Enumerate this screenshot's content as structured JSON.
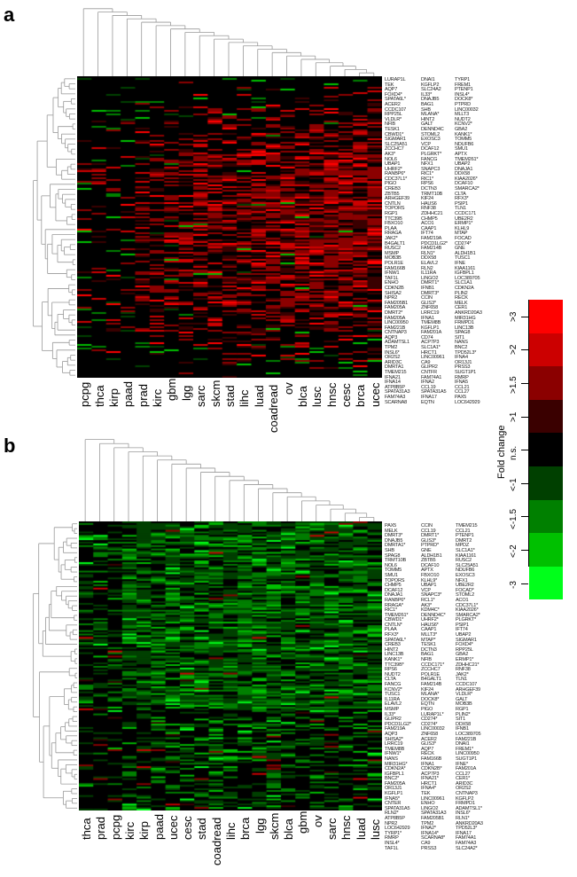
{
  "chart_data": [
    {
      "panel": "a",
      "type": "heatmap",
      "title": "",
      "xlabel": "",
      "ylabel": "",
      "dominant_direction": "up (red)",
      "columns": [
        "pcpg",
        "thca",
        "kirp",
        "paad",
        "prad",
        "kirc",
        "gbm",
        "lgg",
        "sarc",
        "skcm",
        "stad",
        "lihc",
        "luad",
        "coadread",
        "ov",
        "blca",
        "lusc",
        "hnsc",
        "cesc",
        "brca",
        "ucec"
      ],
      "row_dendrogram": true,
      "column_dendrogram": true,
      "gene_labels": [
        [
          "LURAP1L",
          "TEK",
          "AQP7",
          "FOXD4*",
          "SPATA6L*",
          "ACER2",
          "CCDC107",
          "RPP25L",
          "VLDLR*",
          "NFIB",
          "TESK1",
          "CBWD1*",
          "SIGMAR1",
          "SLC25A51",
          "ZCCHC7",
          "AK3*",
          "NOL6",
          "UBAP1",
          "UHRF2*",
          "RANBP6*",
          "CDC37L1*",
          "PIGO",
          "CREB3",
          "ZBTB5",
          "ARHGEF39",
          "CNTLN",
          "TOPORS",
          "RGP1",
          "TTC39B",
          "FBXO10",
          "PLAA",
          "RRAGA",
          "JAK2*",
          "B4GALT1",
          "RUSC2",
          "MSMP",
          "MOB3B",
          "POLR1E",
          "FAM166B",
          "IFNW1",
          "TAF1L",
          "ENHO",
          "CDKN2B",
          "SHISA2",
          "NPR2",
          "FAM205B1",
          "FAM205A",
          "DMRT2*",
          "FAM205A",
          "LINC00950",
          "FAM221B",
          "CNTNAP3",
          "AQP3",
          "ADAMTSL1",
          "TPM2",
          "INSL6*",
          "OR2S2",
          "ARID3C",
          "DMRTA1",
          "TMEM215",
          "IFNA21",
          "IFNA14",
          "ATP8B5P",
          "SPATA31A3",
          "FAM74A3",
          "SCARNA8"
        ],
        [
          "DNAI1",
          "KGFLP2",
          "SLC24A2",
          "IL33*",
          "DNAJB5",
          "BAG1",
          "SHB",
          "MLANA*",
          "HINT2",
          "GALT",
          "DENND4C",
          "STOML2",
          "EXOSC3",
          "VCP",
          "DCAF12",
          "PLGRKT*",
          "FANCG",
          "NFX1",
          "SNAPC3",
          "RIC1*",
          "RIC1*",
          "RPS6",
          "DCTN3",
          "TRMT10B",
          "KIF24",
          "HAUS6",
          "RNF38",
          "ZDHHC21",
          "CHMP5",
          "ACO1",
          "CAAP1",
          "IFT74",
          "FAM219A",
          "PDCD1LG2*",
          "FAM214B",
          "RLN1*",
          "DDX58",
          "ELAVL2",
          "RLN2",
          "IL11RA",
          "LINGO2",
          "DMRT1*",
          "IFNB1",
          "DMRT3*",
          "CCIN",
          "GLIS3*",
          "ZNF658",
          "LRRC19",
          "IFNA1",
          "TMEM8B",
          "KGFLP1",
          "FAM201A",
          "CD74",
          "ACP7P3",
          "SLC1A1*",
          "HRCT1",
          "LINC00961",
          "CA9",
          "GLIPR2",
          "CNTFR",
          "FAM74A1",
          "IFNA2",
          "CCL19",
          "SPATA31A5",
          "IFNA17",
          "EQTN"
        ],
        [
          "TYRP1",
          "FREM1",
          "PTENP1",
          "INSL4*",
          "DOCK8*",
          "PTPRD",
          "LINC00032",
          "MLLT3",
          "NUDT2",
          "KCNV2*",
          "GBA2",
          "KANK1*",
          "TOMM5",
          "NDUFB6",
          "SMU1",
          "APTX",
          "TMEM261*",
          "UBAP2",
          "DNAJA1",
          "DDX58",
          "KIAA2026*",
          "DCAF10",
          "SMARCA2*",
          "CLTA",
          "RFX3*",
          "PSIP1",
          "TLN1",
          "CCDC171",
          "UBE2R2",
          "ERMP1*",
          "KLHL9",
          "MTAP",
          "FOCAD",
          "CD274*",
          "GNE",
          "ALDH1B1",
          "TUSC1",
          "IFNE",
          "KIAA1161",
          "IGFBPL1",
          "LOC389705",
          "SLC1A1",
          "CDKN2A",
          "PLIN2",
          "RECK",
          "MELK",
          "CER1",
          "ANKRD20A3",
          "MIR31HG",
          "FRMPD1",
          "LINC13B",
          "SPAG8",
          "SIT1",
          "NANS",
          "BNC2",
          "TPD52L3*",
          "IFNA4",
          "OR13J1",
          "PRSS3",
          "SUGT1P1",
          "RMRP",
          "IFNA5",
          "CCL21",
          "CCL27",
          "PAX5",
          "LOC642929"
        ]
      ]
    },
    {
      "panel": "b",
      "type": "heatmap",
      "title": "",
      "xlabel": "",
      "ylabel": "",
      "dominant_direction": "down (green)",
      "columns": [
        "thca",
        "prad",
        "pcpg",
        "kirc",
        "kirp",
        "paad",
        "ucec",
        "cesc",
        "stad",
        "coadread",
        "lihc",
        "brca",
        "lgg",
        "skcm",
        "blca",
        "gbm",
        "ov",
        "sarc",
        "hnsc",
        "luad",
        "lusc"
      ],
      "row_dendrogram": true,
      "column_dendrogram": true,
      "gene_labels": [
        [
          "PAX5",
          "MELK",
          "DMRT3*",
          "DNAJB5",
          "DMRTA1*",
          "SHB",
          "SPAG8",
          "TRMT10B",
          "NOL6",
          "TOMM5",
          "SMU1",
          "TOPORS",
          "CHMP5",
          "DCAF12",
          "DNAJA1",
          "RANBP6*",
          "RRAGA*",
          "RIC1*",
          "TMEM261*",
          "CBWD1*",
          "CNTLN*",
          "PLAA",
          "RFX3*",
          "SPATA6L*",
          "CREB3",
          "HINT2",
          "LINC13B",
          "KANK1*",
          "TTC39B*",
          "RPS6",
          "NUDT2",
          "CLTA",
          "FANCG",
          "KCNV2*",
          "TUSC1",
          "IL11RA",
          "ELAVL2",
          "MSMP",
          "IL33*",
          "GLIPR2",
          "PDCD1LG2*",
          "FAM219A",
          "AQP3",
          "SHISA2*",
          "LRRC19",
          "TMEM8B",
          "IFNW1*",
          "NANS",
          "MIR31HG*",
          "CDKN2A*",
          "IGFBPL1",
          "BNC2*",
          "FAM205A",
          "OR13J1",
          "KGFLP1",
          "IFNA5*",
          "CNTER",
          "SPATA31A5",
          "RLN2*",
          "ATP8B5P",
          "NPR2",
          "LOC642929",
          "TYRP1*",
          "RMRP",
          "INSL4*",
          "TAF1L"
        ],
        [
          "CCIN",
          "CCL19",
          "DMRT1*",
          "GLIS3*",
          "PTPRD*",
          "GNE",
          "ALDH1B1",
          "ZBTB5",
          "DCAF10",
          "APTX",
          "FBXO10",
          "KLHL9*",
          "UBAP1",
          "VCP",
          "SNAPC3*",
          "RCL1*",
          "AK3*",
          "KDM4C*",
          "DENND4C*",
          "UHRF2*",
          "HAUS6*",
          "CAAP1",
          "MLLT3*",
          "MTAP*",
          "TESK1",
          "DCTN3",
          "BAG1",
          "NFIB",
          "CCDC171*",
          "ZCCHC7",
          "POLR1E",
          "B4GALT1",
          "FAM214B",
          "KIF24",
          "MLANA*",
          "DOCK8*",
          "EQTN",
          "PIGO",
          "LURAP1L*",
          "CD274*",
          "CD274*",
          "LINC00032",
          "ZNF658",
          "ACER2",
          "GLIS3*",
          "AQP7",
          "RECK",
          "FAM166B",
          "IFNA1",
          "CDKN2B*",
          "ACP7P3",
          "IFNA21*",
          "HRCT1",
          "IFNA4*",
          "TEK",
          "LINC00961",
          "ENHO",
          "LINGO2",
          "SPATA31A3",
          "FAM205B1",
          "TPM2",
          "IFNA2*",
          "IFNA14*",
          "SCARNA8*",
          "CA9",
          "PRSS3"
        ],
        [
          "TMEM215",
          "CCL21",
          "PTENP1",
          "DMRT2",
          "MPDZ",
          "SLC1A1*",
          "KIAA1161",
          "RUSC2",
          "SLC25A51",
          "NDUFB6",
          "EXOSC3",
          "NFX1",
          "UBE2R2",
          "FOCAD*",
          "STOML2",
          "ACO1",
          "CDC37L1*",
          "KIAA2026*",
          "SMARCA2*",
          "PLGRKT*",
          "PSIP1",
          "IFT74",
          "UBAP2",
          "SIGMAR1",
          "FOXD4*",
          "RPP25L",
          "GBA2",
          "ERMP1*",
          "ZDHHC21*",
          "RNF38",
          "JAK2*",
          "TLN1",
          "CCDC107",
          "ARHGEF39",
          "VLDLR*",
          "GALT",
          "MOB3B",
          "RGP1",
          "PLIN2*",
          "SIT1",
          "DDX58",
          "IFNB1",
          "LOC389705",
          "FAM221B",
          "DNAI1",
          "FREM1*",
          "LINC00950",
          "SUGT1P1",
          "IFNE*",
          "FAM201A",
          "CCL27",
          "CER1*",
          "ARID3C",
          "OR2S2",
          "CNTNAP3",
          "KGFLP2",
          "FRMPD1",
          "ADAMTSL1*",
          "INSL6*",
          "RLN1*",
          "ANKRD20A3",
          "TPD52L3*",
          "IFNA17",
          "FAM74A1",
          "FAM74A3",
          "SLC24A2*"
        ]
      ]
    }
  ],
  "legend": {
    "title": "Fold change",
    "bins": [
      {
        "label": ">3",
        "color": "#ff0000"
      },
      {
        "label": ">2",
        "color": "#cc0000"
      },
      {
        "label": ">1.5",
        "color": "#8b0000"
      },
      {
        "label": ">1",
        "color": "#3a0000"
      },
      {
        "label": "n.s.",
        "color": "#000000"
      },
      {
        "label": "<-1",
        "color": "#004000"
      },
      {
        "label": "<-1.5",
        "color": "#008000"
      },
      {
        "label": "<-2",
        "color": "#00c000"
      },
      {
        "label": "-3",
        "color": "#00ff1a"
      }
    ]
  },
  "panels": {
    "a_label": "a",
    "b_label": "b"
  }
}
